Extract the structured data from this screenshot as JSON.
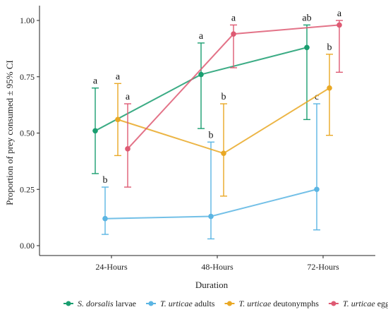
{
  "chart_data": {
    "type": "line",
    "xlabel": "Duration",
    "ylabel": "Proportion of prey consumed ± 95% CI",
    "categories": [
      "24-Hours",
      "48-Hours",
      "72-Hours"
    ],
    "ylim": [
      0,
      1
    ],
    "yticks": [
      0.0,
      0.25,
      0.5,
      0.75,
      1.0
    ],
    "ytick_labels": [
      "0.00",
      "0.25",
      "0.50",
      "0.75",
      "1.00"
    ],
    "grid": false,
    "legend_position": "bottom",
    "series": [
      {
        "name_parts": [
          "S. dorsalis",
          " larvae"
        ],
        "color": "#1a9e70",
        "values": [
          0.51,
          0.76,
          0.88
        ],
        "lower": [
          0.32,
          0.52,
          0.56
        ],
        "upper": [
          0.7,
          0.9,
          0.98
        ],
        "letters": [
          "a",
          "a",
          "ab"
        ]
      },
      {
        "name_parts": [
          "T. urticae",
          " adults"
        ],
        "color": "#5bb5e3",
        "values": [
          0.12,
          0.13,
          0.25
        ],
        "lower": [
          0.05,
          0.03,
          0.07
        ],
        "upper": [
          0.26,
          0.46,
          0.63
        ],
        "letters": [
          "b",
          "b",
          "c"
        ]
      },
      {
        "name_parts": [
          "T. urticae",
          " deutonymphs"
        ],
        "color": "#e9a825",
        "values": [
          0.56,
          0.41,
          0.7
        ],
        "lower": [
          0.4,
          0.22,
          0.49
        ],
        "upper": [
          0.72,
          0.63,
          0.85
        ],
        "letters": [
          "a",
          "b",
          "b"
        ]
      },
      {
        "name_parts": [
          "T. urticae",
          " eggs"
        ],
        "color": "#de5a73",
        "values": [
          0.43,
          0.94,
          0.98
        ],
        "lower": [
          0.26,
          0.79,
          0.77
        ],
        "upper": [
          0.63,
          0.98,
          1.0
        ],
        "letters": [
          "a",
          "a",
          "a"
        ]
      }
    ]
  }
}
